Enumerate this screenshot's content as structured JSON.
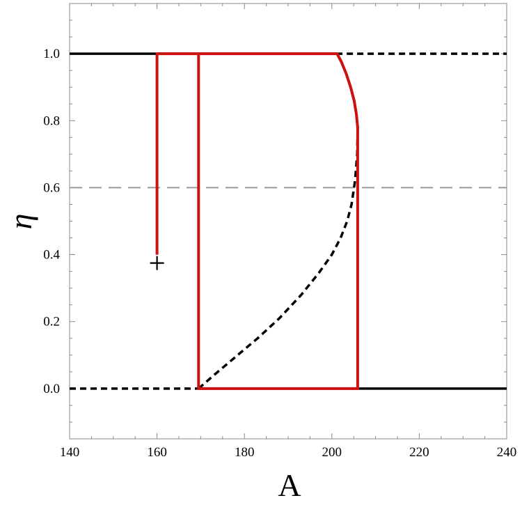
{
  "chart_data": {
    "type": "line",
    "title": "",
    "xlabel": "A",
    "ylabel": "η",
    "xlim": [
      140,
      240
    ],
    "ylim": [
      -0.15,
      1.15
    ],
    "grid": false,
    "x_ticks": [
      140,
      160,
      180,
      200,
      220,
      240
    ],
    "x_tick_labels": [
      "140",
      "160",
      "180",
      "200",
      "220",
      "240"
    ],
    "y_ticks": [
      0.0,
      0.2,
      0.4,
      0.6,
      0.8,
      1.0
    ],
    "y_tick_labels": [
      "0.0",
      "0.2",
      "0.4",
      "0.6",
      "0.8",
      "1.0"
    ],
    "reference_lines": [
      {
        "y": 0.6,
        "style": "dashed",
        "color": "#999999"
      }
    ],
    "series": [
      {
        "style": "solid",
        "color": "#000000",
        "x": [
          140,
          201
        ],
        "y": [
          1.0,
          1.0
        ]
      },
      {
        "style": "dashed",
        "color": "#000000",
        "x": [
          201,
          240
        ],
        "y": [
          1.0,
          1.0
        ]
      },
      {
        "style": "dashed",
        "color": "#000000",
        "x": [
          140,
          169
        ],
        "y": [
          0.0,
          0.0
        ]
      },
      {
        "style": "solid",
        "color": "#000000",
        "x": [
          169,
          240
        ],
        "y": [
          0.0,
          0.0
        ]
      },
      {
        "style": "solid",
        "color": "#000000",
        "x": [
          201.2,
          202.2,
          203.3,
          204.3,
          205.1,
          205.6,
          205.9
        ],
        "y": [
          1.0,
          0.975,
          0.94,
          0.9,
          0.86,
          0.82,
          0.78
        ]
      },
      {
        "style": "dashed",
        "color": "#000000",
        "x": [
          169.5,
          173,
          178,
          183,
          188,
          193,
          197,
          200,
          202,
          203.5,
          204.5,
          205.3,
          205.8,
          205.9
        ],
        "y": [
          0.0,
          0.04,
          0.095,
          0.15,
          0.21,
          0.28,
          0.345,
          0.4,
          0.45,
          0.5,
          0.55,
          0.62,
          0.7,
          0.78
        ]
      },
      {
        "style": "solid",
        "color": "#cc1111",
        "x": [
          160,
          160,
          201.2,
          202.2,
          203.3,
          204.3,
          205.1,
          205.6,
          205.9,
          205.9,
          169.5,
          169.5,
          201.2
        ],
        "y": [
          0.4,
          1.0,
          1.0,
          0.975,
          0.94,
          0.9,
          0.86,
          0.82,
          0.78,
          0.0,
          0.0,
          1.0,
          1.0
        ]
      }
    ],
    "markers": [
      {
        "x": 160,
        "y": 0.375,
        "symbol": "+",
        "color": "#000000"
      }
    ]
  }
}
